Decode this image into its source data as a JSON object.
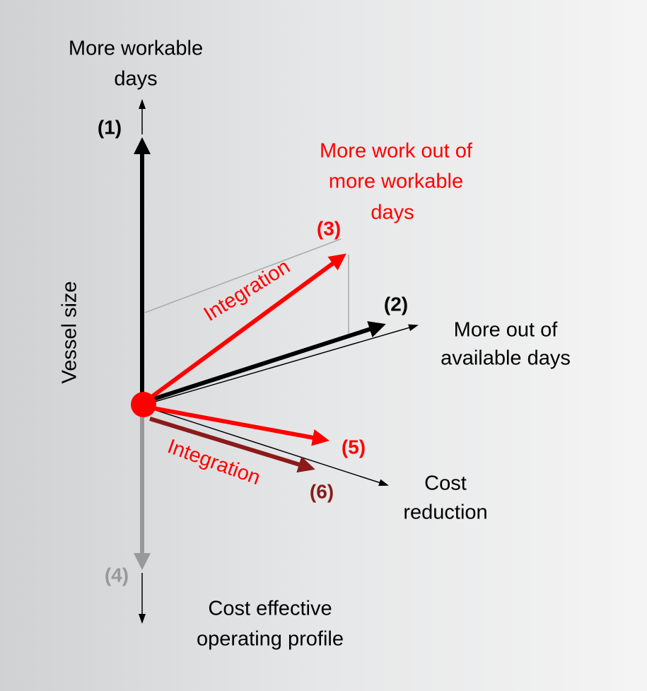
{
  "labels": {
    "top": [
      "More workable",
      "days"
    ],
    "n1": "(1)",
    "red_goal": [
      "More work out of",
      "more workable",
      "days"
    ],
    "n3": "(3)",
    "integration_upper": "Integration",
    "n2": "(2)",
    "right": [
      "More out of",
      "available days"
    ],
    "vertical": "Vessel size",
    "integration_lower": "Integration",
    "n5": "(5)",
    "cost": [
      "Cost",
      "reduction"
    ],
    "n6": "(6)",
    "n4": "(4)",
    "bottom": [
      "Cost effective",
      "operating profile"
    ]
  }
}
